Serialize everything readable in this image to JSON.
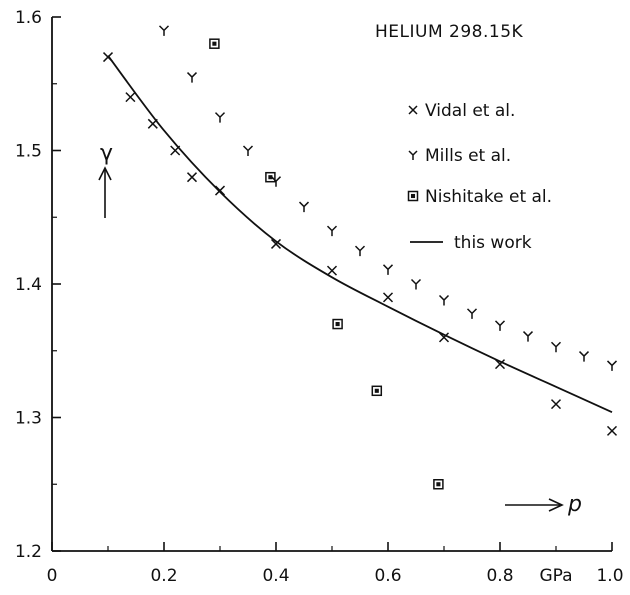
{
  "chart_data": {
    "type": "scatter",
    "title": "HELIUM 298.15K",
    "ylabel": "γ",
    "xlabel": "p",
    "x_unit": "GPa",
    "xlim": [
      0,
      1.0
    ],
    "ylim": [
      1.2,
      1.6
    ],
    "x_ticks": [
      0,
      0.2,
      0.4,
      0.6,
      0.8,
      1.0
    ],
    "x_tick_labels": [
      "0",
      "0.2",
      "0.4",
      "0.6",
      "0.8",
      "1.0"
    ],
    "y_ticks": [
      1.2,
      1.3,
      1.4,
      1.5,
      1.6
    ],
    "y_tick_labels": [
      "1.2",
      "1.3",
      "1.4",
      "1.5",
      "1.6"
    ],
    "grid": false,
    "legend_position": "upper-right",
    "series": [
      {
        "name": "Vidal et al.",
        "marker": "x",
        "x": [
          0.1,
          0.14,
          0.18,
          0.22,
          0.25,
          0.3,
          0.4,
          0.5,
          0.6,
          0.7,
          0.8,
          0.9,
          1.0
        ],
        "y": [
          1.57,
          1.54,
          1.52,
          1.5,
          1.48,
          1.47,
          1.43,
          1.41,
          1.39,
          1.36,
          1.34,
          1.31,
          1.29
        ]
      },
      {
        "name": "Mills et al.",
        "marker": "Y",
        "x": [
          0.2,
          0.25,
          0.3,
          0.35,
          0.4,
          0.45,
          0.5,
          0.55,
          0.6,
          0.65,
          0.7,
          0.75,
          0.8,
          0.85,
          0.9,
          0.95,
          1.0
        ],
        "y": [
          1.59,
          1.555,
          1.525,
          1.5,
          1.477,
          1.458,
          1.44,
          1.425,
          1.411,
          1.4,
          1.388,
          1.378,
          1.369,
          1.361,
          1.353,
          1.346,
          1.339
        ]
      },
      {
        "name": "Nishitake et al.",
        "marker": "square",
        "x": [
          0.29,
          0.39,
          0.51,
          0.58,
          0.69
        ],
        "y": [
          1.58,
          1.48,
          1.37,
          1.32,
          1.25
        ]
      },
      {
        "name": "this work",
        "marker": "line",
        "x": [
          0.1,
          0.2,
          0.3,
          0.4,
          0.5,
          0.6,
          0.7,
          0.8,
          0.9,
          1.0
        ],
        "y": [
          1.571,
          1.515,
          1.469,
          1.432,
          1.405,
          1.383,
          1.362,
          1.342,
          1.323,
          1.304
        ]
      }
    ]
  }
}
